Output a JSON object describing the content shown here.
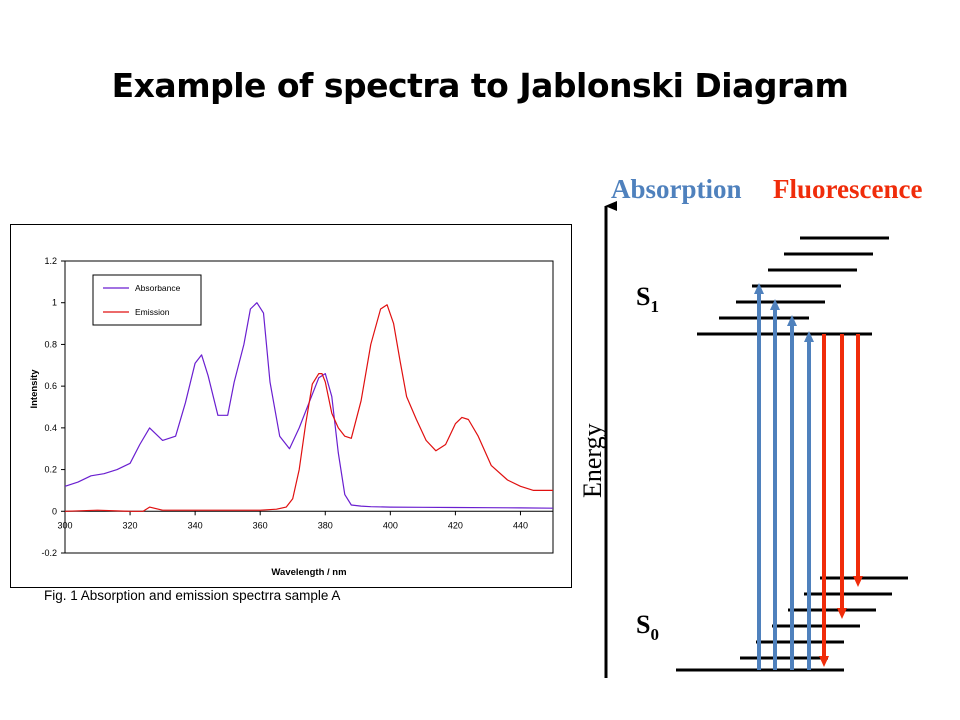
{
  "title": "Example of spectra to Jablonski Diagram",
  "caption": "Fig. 1 Absorption and emission spectrra sample A",
  "chart_data": {
    "type": "line",
    "xlabel": "Wavelength / nm",
    "ylabel": "Intensity",
    "xlim": [
      300,
      450
    ],
    "ylim": [
      -0.2,
      1.2
    ],
    "xticks": [
      300,
      320,
      340,
      360,
      380,
      400,
      420,
      440
    ],
    "yticks": [
      -0.2,
      0,
      0.2,
      0.4,
      0.6,
      0.8,
      1,
      1.2
    ],
    "ytick_labels": [
      "-0.2",
      "0",
      "0.2",
      "0.4",
      "0.6",
      "0.8",
      "1",
      "1.2"
    ],
    "grid": false,
    "legend_position": "top-left",
    "series": [
      {
        "name": "Absorbance",
        "color": "#6a1fd0",
        "x": [
          300,
          304,
          308,
          312,
          316,
          320,
          323,
          326,
          330,
          334,
          337,
          340,
          342,
          344,
          347,
          350,
          352,
          355,
          357,
          359,
          361,
          363,
          366,
          369,
          372,
          375,
          378,
          380,
          382,
          384,
          386,
          388,
          391,
          394,
          400,
          410,
          420,
          430,
          440,
          450
        ],
        "y": [
          0.12,
          0.14,
          0.17,
          0.18,
          0.2,
          0.23,
          0.32,
          0.4,
          0.34,
          0.36,
          0.52,
          0.71,
          0.75,
          0.65,
          0.46,
          0.46,
          0.62,
          0.8,
          0.97,
          1.0,
          0.95,
          0.62,
          0.36,
          0.3,
          0.4,
          0.52,
          0.64,
          0.66,
          0.55,
          0.28,
          0.08,
          0.03,
          0.025,
          0.022,
          0.02,
          0.019,
          0.018,
          0.017,
          0.016,
          0.015
        ]
      },
      {
        "name": "Emission",
        "color": "#e01010",
        "x": [
          300,
          310,
          320,
          324,
          326,
          330,
          340,
          350,
          360,
          365,
          368,
          370,
          372,
          374,
          376,
          378,
          379,
          380,
          382,
          384,
          386,
          388,
          391,
          394,
          397,
          399,
          401,
          403,
          405,
          408,
          411,
          414,
          417,
          420,
          422,
          424,
          427,
          431,
          436,
          440,
          444,
          450
        ],
        "y": [
          0.0,
          0.005,
          0.0,
          0.0,
          0.02,
          0.005,
          0.005,
          0.005,
          0.005,
          0.01,
          0.02,
          0.06,
          0.2,
          0.42,
          0.61,
          0.66,
          0.66,
          0.62,
          0.47,
          0.4,
          0.36,
          0.35,
          0.53,
          0.8,
          0.97,
          0.99,
          0.9,
          0.72,
          0.55,
          0.44,
          0.34,
          0.29,
          0.32,
          0.42,
          0.45,
          0.44,
          0.36,
          0.22,
          0.15,
          0.12,
          0.1,
          0.1
        ]
      }
    ]
  },
  "jablonski": {
    "absorption_label": "Absorption",
    "fluorescence_label": "Fluorescence",
    "absorption_color": "#4f81bd",
    "fluorescence_color": "#f02c0a",
    "energy_label": "Energy",
    "s1_label": "S",
    "s1_subscript": "1",
    "s0_label": "S",
    "s0_subscript": "0"
  }
}
